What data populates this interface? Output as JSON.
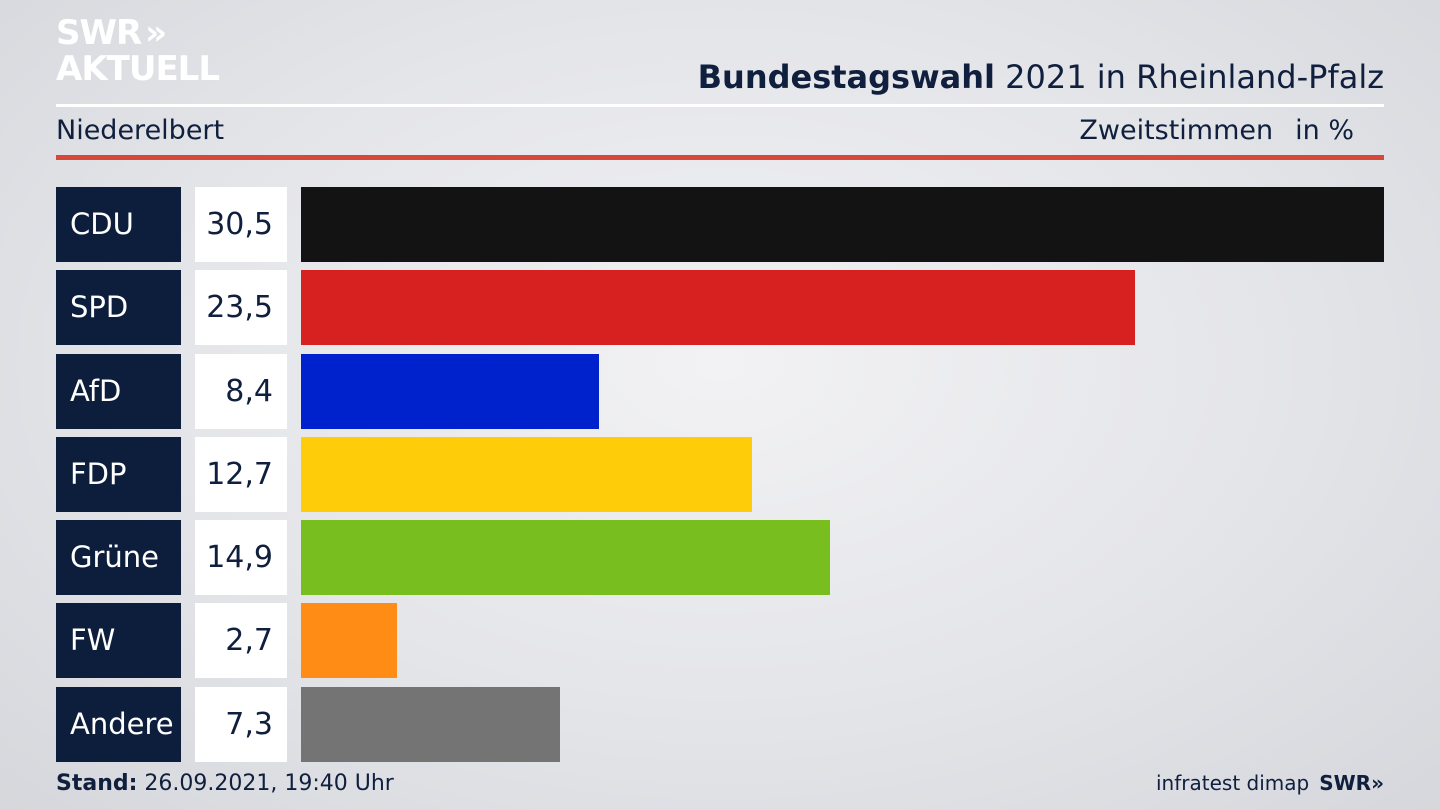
{
  "logo": {
    "line1": "SWR",
    "arrows": "»",
    "line2": "AKTUELL"
  },
  "header": {
    "title_bold": "Bundestagswahl",
    "title_rest": " 2021 in Rheinland-Pfalz",
    "location": "Niederelbert",
    "measure": "Zweitstimmen",
    "unit": "in %"
  },
  "chart_data": {
    "type": "bar",
    "orientation": "horizontal",
    "categories": [
      "CDU",
      "SPD",
      "AfD",
      "FDP",
      "Grüne",
      "FW",
      "Andere"
    ],
    "values": [
      30.5,
      23.5,
      8.4,
      12.7,
      14.9,
      2.7,
      7.3
    ],
    "value_labels": [
      "30,5",
      "23,5",
      "8,4",
      "12,7",
      "14,9",
      "2,7",
      "7,3"
    ],
    "colors": [
      "#131313",
      "#d72020",
      "#0022cc",
      "#ffcc0a",
      "#78be1e",
      "#ff8c14",
      "#747474"
    ],
    "xlim": [
      0,
      30.5
    ]
  },
  "footer": {
    "stand_label": "Stand:",
    "stand_value": " 26.09.2021, 19:40 Uhr",
    "source": "infratest dimap",
    "brand": "SWR»"
  }
}
